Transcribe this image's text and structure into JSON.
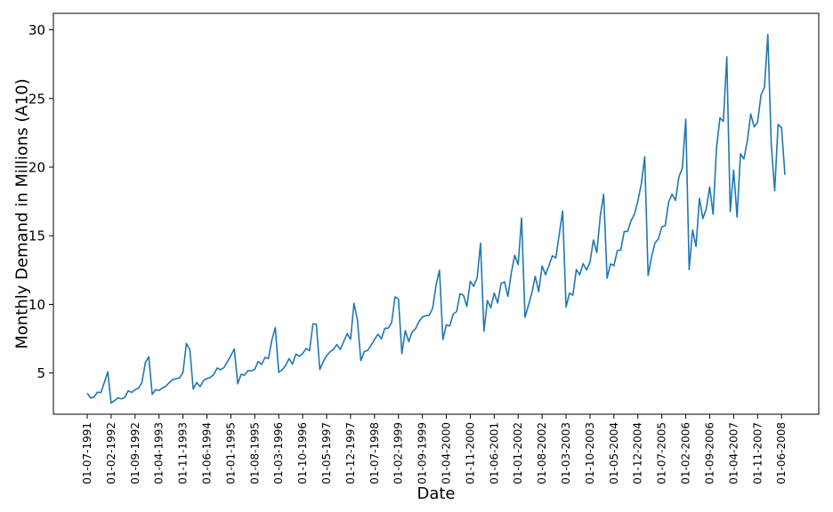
{
  "chart_data": {
    "type": "line",
    "xlabel": "Date",
    "ylabel": "Monthly Demand in Millions (A10)",
    "ylim": [
      2.0,
      31.2
    ],
    "yticks": [
      5,
      10,
      15,
      20,
      25,
      30
    ],
    "grid": false,
    "legend": "none",
    "line_color": "#1f77b4",
    "x_start": "1991-07",
    "x_end": "2008-06",
    "xticks": [
      "01-07-1991",
      "01-02-1992",
      "01-09-1992",
      "01-04-1993",
      "01-11-1993",
      "01-06-1994",
      "01-01-1995",
      "01-08-1995",
      "01-03-1996",
      "01-10-1996",
      "01-05-1997",
      "01-12-1997",
      "01-07-1998",
      "01-02-1999",
      "01-09-1999",
      "01-04-2000",
      "01-11-2000",
      "01-06-2001",
      "01-01-2002",
      "01-08-2002",
      "01-03-2003",
      "01-10-2003",
      "01-05-2004",
      "01-12-2004",
      "01-07-2005",
      "01-02-2006",
      "01-09-2006",
      "01-04-2007",
      "01-11-2007",
      "01-06-2008"
    ],
    "series": [
      {
        "values": [
          3.53,
          3.18,
          3.25,
          3.61,
          3.57,
          4.31,
          5.09,
          2.81,
          2.99,
          3.2,
          3.12,
          3.23,
          3.71,
          3.59,
          3.79,
          3.9,
          4.31,
          5.76,
          6.19,
          3.45,
          3.79,
          3.73,
          3.91,
          4.04,
          4.3,
          4.52,
          4.59,
          4.64,
          5.04,
          7.15,
          6.72,
          3.83,
          4.31,
          4.01,
          4.45,
          4.6,
          4.68,
          4.89,
          5.37,
          5.24,
          5.4,
          5.83,
          6.26,
          6.76,
          4.22,
          4.91,
          4.84,
          5.18,
          5.15,
          5.28,
          5.84,
          5.62,
          6.14,
          6.06,
          7.42,
          8.31,
          5.05,
          5.24,
          5.54,
          6.05,
          5.65,
          6.38,
          6.22,
          6.42,
          6.79,
          6.63,
          8.58,
          8.55,
          5.26,
          5.82,
          6.27,
          6.54,
          6.73,
          7.08,
          6.72,
          7.29,
          7.87,
          7.46,
          10.07,
          8.88,
          5.9,
          6.56,
          6.65,
          7.02,
          7.44,
          7.83,
          7.49,
          8.25,
          8.27,
          8.67,
          10.55,
          10.4,
          6.41,
          8.09,
          7.29,
          8.0,
          8.23,
          8.75,
          9.08,
          9.18,
          9.21,
          9.73,
          11.41,
          12.49,
          7.44,
          8.51,
          8.43,
          9.3,
          9.47,
          10.77,
          10.67,
          9.85,
          11.68,
          11.32,
          11.93,
          14.46,
          8.05,
          10.28,
          9.76,
          10.83,
          10.1,
          11.52,
          11.65,
          10.58,
          12.31,
          13.58,
          12.9,
          16.29,
          9.06,
          9.92,
          10.84,
          12.05,
          10.93,
          12.8,
          12.16,
          12.82,
          13.54,
          13.38,
          15.08,
          16.8,
          9.81,
          10.82,
          10.67,
          12.53,
          12.16,
          12.97,
          12.51,
          13.08,
          14.69,
          13.77,
          16.42,
          18.02,
          11.91,
          12.95,
          12.82,
          13.92,
          13.96,
          15.31,
          15.31,
          16.1,
          16.57,
          17.54,
          18.76,
          20.75,
          12.1,
          13.45,
          14.47,
          14.77,
          15.64,
          15.74,
          17.46,
          18.03,
          17.57,
          19.29,
          19.92,
          23.49,
          12.54,
          15.42,
          14.22,
          17.72,
          16.25,
          16.96,
          18.56,
          16.57,
          21.42,
          23.58,
          23.33,
          28.04,
          16.76,
          19.78,
          16.36,
          20.97,
          20.59,
          21.91,
          23.87,
          22.93,
          23.26,
          25.25,
          25.8,
          29.66,
          21.65,
          18.26,
          23.11,
          22.87,
          19.43
        ]
      }
    ]
  }
}
